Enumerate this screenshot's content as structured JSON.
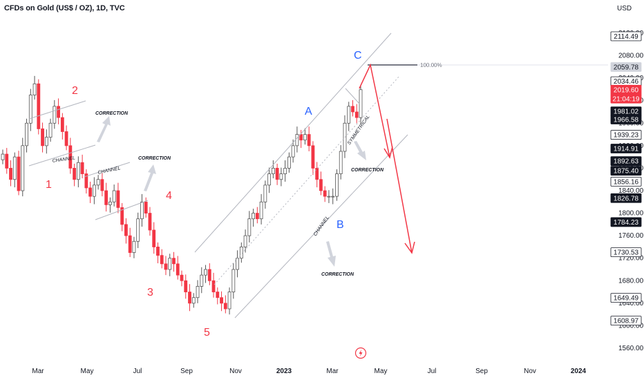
{
  "header": {
    "title": "CFDs on Gold (US$ / OZ), 1D, TVC",
    "currency": "USD"
  },
  "colors": {
    "up": "#ffffff",
    "down": "#f23645",
    "wick": "#6b6b6b",
    "wave_label": "#f23645",
    "abc_label": "#2962ff",
    "channel": "#b2b5be",
    "arrow_red": "#f23645",
    "price_tag": "#131722",
    "current_tag": "#f23645"
  },
  "chart_data": {
    "type": "candlestick",
    "x_ticks": [
      "Mar",
      "May",
      "Jul",
      "Sep",
      "Nov",
      "2023",
      "Mar",
      "May",
      "Jul",
      "Sep",
      "Nov",
      "2024"
    ],
    "y_ticks": [
      1560,
      1600,
      1640,
      1680,
      1720,
      1760,
      1800,
      1840,
      1880,
      1920,
      1960,
      2000,
      2040,
      2080,
      2120
    ],
    "y_range": [
      1540,
      2160
    ],
    "price_tags": [
      {
        "value": 2114.49,
        "label": "2114.49",
        "style": "boxed"
      },
      {
        "value": 2059.78,
        "label": "2059.78",
        "style": "gray"
      },
      {
        "value": 2034.46,
        "label": "2034.46",
        "style": "boxed"
      },
      {
        "value": 2019.6,
        "label": "2019.60",
        "sub": "21:04:19",
        "style": "current"
      },
      {
        "value": 1981.02,
        "label": "1981.02",
        "style": "dark"
      },
      {
        "value": 1966.58,
        "label": "1966.58",
        "style": "dark"
      },
      {
        "value": 1939.23,
        "label": "1939.23",
        "style": "boxed"
      },
      {
        "value": 1914.91,
        "label": "1914.91",
        "style": "dark"
      },
      {
        "value": 1892.63,
        "label": "1892.63",
        "style": "dark"
      },
      {
        "value": 1875.4,
        "label": "1875.40",
        "style": "dark"
      },
      {
        "value": 1856.16,
        "label": "1856.16",
        "style": "boxed"
      },
      {
        "value": 1826.78,
        "label": "1826.78",
        "style": "dark"
      },
      {
        "value": 1784.23,
        "label": "1784.23",
        "style": "dark"
      },
      {
        "value": 1730.53,
        "label": "1730.53",
        "style": "boxed"
      },
      {
        "value": 1649.49,
        "label": "1649.49",
        "style": "boxed"
      },
      {
        "value": 1608.97,
        "label": "1608.97",
        "style": "boxed"
      }
    ],
    "fib_level": {
      "label": "100.00%",
      "value": 2059.78
    },
    "wave_labels": [
      "1",
      "2",
      "3",
      "4",
      "5"
    ],
    "abc_labels": [
      "A",
      "B",
      "C"
    ],
    "annotations": [
      "CHANNEL",
      "CHANNEL",
      "CORRECTION",
      "CORRECTION",
      "CORRECTION",
      "CORRECTION",
      "CHANNEL",
      "SYMMETRICAL"
    ],
    "closes": [
      1905,
      1880,
      1860,
      1900,
      1840,
      1920,
      1960,
      2010,
      2030,
      1950,
      1920,
      1935,
      1960,
      1990,
      1970,
      1945,
      1920,
      1880,
      1860,
      1890,
      1870,
      1845,
      1830,
      1850,
      1860,
      1840,
      1815,
      1820,
      1840,
      1810,
      1780,
      1760,
      1730,
      1750,
      1790,
      1820,
      1800,
      1770,
      1740,
      1725,
      1710,
      1700,
      1720,
      1710,
      1690,
      1680,
      1660,
      1640,
      1650,
      1670,
      1690,
      1700,
      1680,
      1660,
      1650,
      1640,
      1630,
      1660,
      1700,
      1720,
      1740,
      1760,
      1790,
      1800,
      1790,
      1820,
      1850,
      1870,
      1880,
      1860,
      1870,
      1880,
      1900,
      1920,
      1940,
      1930,
      1940,
      1920,
      1880,
      1860,
      1840,
      1830,
      1830,
      1830,
      1870,
      1910,
      1960,
      1990,
      1980,
      1970,
      2019.6
    ]
  },
  "labels": {
    "wave": [
      {
        "id": "1",
        "text": "1"
      },
      {
        "id": "2",
        "text": "2"
      },
      {
        "id": "3",
        "text": "3"
      },
      {
        "id": "4",
        "text": "4"
      },
      {
        "id": "5",
        "text": "5"
      }
    ],
    "abc": [
      {
        "id": "A",
        "text": "A"
      },
      {
        "id": "B",
        "text": "B"
      },
      {
        "id": "C",
        "text": "C"
      }
    ],
    "notes": [
      {
        "id": "channel-1",
        "text": "CHANNEL"
      },
      {
        "id": "channel-2",
        "text": "CHANNEL"
      },
      {
        "id": "correction-1",
        "text": "CORRECTION"
      },
      {
        "id": "correction-2",
        "text": "CORRECTION"
      },
      {
        "id": "correction-3",
        "text": "CORRECTION"
      },
      {
        "id": "correction-4",
        "text": "CORRECTION"
      },
      {
        "id": "channel-3",
        "text": "CHANNEL"
      },
      {
        "id": "symmetrical",
        "text": "SYMMETRICAL"
      }
    ],
    "fib_label": "100.00%"
  }
}
